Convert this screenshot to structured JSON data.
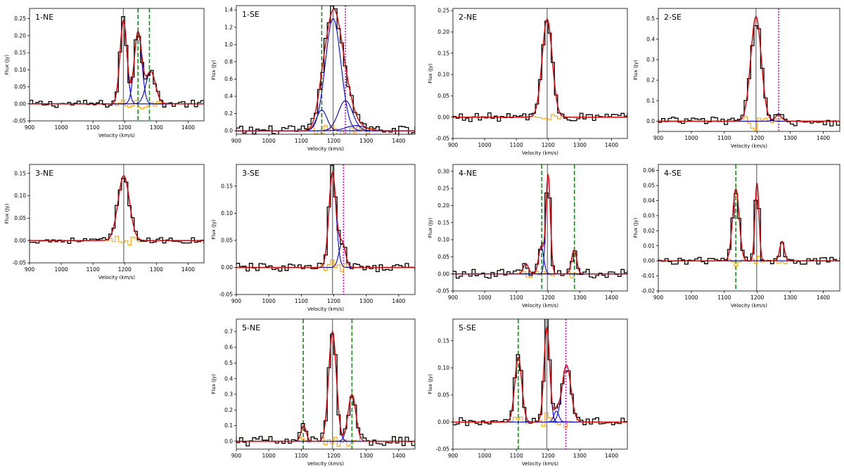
{
  "chart_data": [
    {
      "type": "line",
      "title": "1-NE",
      "xlabel": "Velocity (km/s)",
      "ylabel": "Flux (Jy)",
      "xlim": [
        900,
        1450
      ],
      "ylim": [
        -0.05,
        0.28
      ],
      "xticks": [
        900,
        1000,
        1100,
        1200,
        1300,
        1400
      ],
      "yticks": [
        -0.05,
        0.0,
        0.05,
        0.1,
        0.15,
        0.2,
        0.25
      ],
      "grid": false,
      "components": [
        {
          "name": "",
          "center": 1196,
          "amp": 0.245,
          "sigma": 11
        },
        {
          "name": "",
          "center": 1242,
          "amp": 0.21,
          "sigma": 12
        },
        {
          "name": "",
          "center": 1282,
          "amp": 0.095,
          "sigma": 15
        }
      ],
      "reference_lines": [
        {
          "kind": "systemic",
          "color": "#808080",
          "style": "solid",
          "x": 1196
        },
        {
          "kind": "green",
          "color": "#1a8a1a",
          "style": "dashed",
          "x": 1242
        },
        {
          "kind": "green",
          "color": "#1a8a1a",
          "style": "dashed",
          "x": 1278
        }
      ]
    },
    {
      "type": "line",
      "title": "1-SE",
      "xlabel": "Velocity (km/s)",
      "ylabel": "Flux (Jy)",
      "xlim": [
        900,
        1450
      ],
      "ylim": [
        -0.04,
        1.45
      ],
      "xticks": [
        900,
        1000,
        1100,
        1200,
        1300,
        1400
      ],
      "yticks": [
        0.0,
        0.2,
        0.4,
        0.6,
        0.8,
        1.0,
        1.2,
        1.4
      ],
      "grid": false,
      "components": [
        {
          "name": "",
          "center": 1163,
          "amp": 0.24,
          "sigma": 16
        },
        {
          "name": "",
          "center": 1198,
          "amp": 1.3,
          "sigma": 24
        },
        {
          "name": "",
          "center": 1236,
          "amp": 0.35,
          "sigma": 22
        },
        {
          "name": "",
          "center": 1268,
          "amp": 0.06,
          "sigma": 30
        }
      ],
      "reference_lines": [
        {
          "kind": "green",
          "color": "#1a8a1a",
          "style": "dashed",
          "x": 1163
        },
        {
          "kind": "systemic",
          "color": "#808080",
          "style": "solid",
          "x": 1198
        },
        {
          "kind": "magenta",
          "color": "#e000e0",
          "style": "dotted",
          "x": 1236
        }
      ]
    },
    {
      "type": "line",
      "title": "2-NE",
      "xlabel": "Velocity (km/s)",
      "ylabel": "Flux (Jy)",
      "xlim": [
        900,
        1450
      ],
      "ylim": [
        -0.05,
        0.255
      ],
      "xticks": [
        900,
        1000,
        1100,
        1200,
        1300,
        1400
      ],
      "yticks": [
        -0.05,
        0.0,
        0.05,
        0.1,
        0.15,
        0.2,
        0.25
      ],
      "grid": false,
      "components": [
        {
          "name": "",
          "center": 1197,
          "amp": 0.23,
          "sigma": 16
        }
      ],
      "reference_lines": [
        {
          "kind": "systemic",
          "color": "#808080",
          "style": "solid",
          "x": 1197
        }
      ]
    },
    {
      "type": "line",
      "title": "2-SE",
      "xlabel": "Velocity (km/s)",
      "ylabel": "Flux (Jy)",
      "xlim": [
        900,
        1450
      ],
      "ylim": [
        -0.05,
        0.55
      ],
      "xticks": [
        900,
        1000,
        1100,
        1200,
        1300,
        1400
      ],
      "yticks": [
        0.0,
        0.1,
        0.2,
        0.3,
        0.4,
        0.5
      ],
      "grid": false,
      "components": [
        {
          "name": "",
          "center": 1196,
          "amp": 0.51,
          "sigma": 16
        },
        {
          "name": "",
          "center": 1264,
          "amp": 0.03,
          "sigma": 10
        }
      ],
      "reference_lines": [
        {
          "kind": "systemic",
          "color": "#808080",
          "style": "solid",
          "x": 1196
        },
        {
          "kind": "magenta",
          "color": "#e000e0",
          "style": "dotted",
          "x": 1265
        }
      ]
    },
    {
      "type": "line",
      "title": "3-NE",
      "xlabel": "Velocity (km/s)",
      "ylabel": "Flux (Jy)",
      "xlim": [
        900,
        1450
      ],
      "ylim": [
        -0.05,
        0.17
      ],
      "xticks": [
        900,
        1000,
        1100,
        1200,
        1300,
        1400
      ],
      "yticks": [
        -0.05,
        0.0,
        0.05,
        0.1,
        0.15
      ],
      "grid": false,
      "components": [
        {
          "name": "",
          "center": 1197,
          "amp": 0.145,
          "sigma": 18
        }
      ],
      "reference_lines": [
        {
          "kind": "systemic",
          "color": "#808080",
          "style": "solid",
          "x": 1197
        }
      ]
    },
    {
      "type": "line",
      "title": "3-SE",
      "xlabel": "Velocity (km/s)",
      "ylabel": "Flux (Jy)",
      "xlim": [
        900,
        1450
      ],
      "ylim": [
        -0.05,
        0.19
      ],
      "xticks": [
        900,
        1000,
        1100,
        1200,
        1300,
        1400
      ],
      "yticks": [
        -0.05,
        0.0,
        0.05,
        0.1,
        0.15
      ],
      "grid": false,
      "components": [
        {
          "name": "",
          "center": 1196,
          "amp": 0.175,
          "sigma": 11
        },
        {
          "name": "",
          "center": 1226,
          "amp": 0.045,
          "sigma": 10
        }
      ],
      "reference_lines": [
        {
          "kind": "systemic",
          "color": "#808080",
          "style": "solid",
          "x": 1196
        },
        {
          "kind": "magenta",
          "color": "#e000e0",
          "style": "dotted",
          "x": 1230
        }
      ]
    },
    {
      "type": "line",
      "title": "4-NE",
      "xlabel": "Velocity (km/s)",
      "ylabel": "Flux (Jy)",
      "xlim": [
        900,
        1450
      ],
      "ylim": [
        -0.05,
        0.32
      ],
      "xticks": [
        900,
        1000,
        1100,
        1200,
        1300,
        1400
      ],
      "yticks": [
        -0.05,
        0.0,
        0.05,
        0.1,
        0.15,
        0.2,
        0.25,
        0.3
      ],
      "grid": false,
      "components": [
        {
          "name": "",
          "center": 1130,
          "amp": 0.03,
          "sigma": 8
        },
        {
          "name": "",
          "center": 1178,
          "amp": 0.08,
          "sigma": 8
        },
        {
          "name": "",
          "center": 1200,
          "amp": 0.29,
          "sigma": 7
        },
        {
          "name": "",
          "center": 1282,
          "amp": 0.07,
          "sigma": 8
        }
      ],
      "reference_lines": [
        {
          "kind": "green",
          "color": "#1a8a1a",
          "style": "dashed",
          "x": 1180
        },
        {
          "kind": "systemic",
          "color": "#808080",
          "style": "solid",
          "x": 1198
        },
        {
          "kind": "green",
          "color": "#1a8a1a",
          "style": "dashed",
          "x": 1283
        }
      ]
    },
    {
      "type": "line",
      "title": "4-SE",
      "xlabel": "Velocity (km/s)",
      "ylabel": "Flux (Jy)",
      "xlim": [
        900,
        1450
      ],
      "ylim": [
        -0.02,
        0.064
      ],
      "xticks": [
        900,
        1000,
        1100,
        1200,
        1300,
        1400
      ],
      "yticks": [
        -0.02,
        -0.01,
        0.0,
        0.01,
        0.02,
        0.03,
        0.04,
        0.05,
        0.06
      ],
      "grid": false,
      "components": [
        {
          "name": "",
          "center": 1135,
          "amp": 0.048,
          "sigma": 10
        },
        {
          "name": "",
          "center": 1199,
          "amp": 0.052,
          "sigma": 6
        },
        {
          "name": "",
          "center": 1275,
          "amp": 0.013,
          "sigma": 7
        }
      ],
      "reference_lines": [
        {
          "kind": "green",
          "color": "#1a8a1a",
          "style": "dashed",
          "x": 1135
        },
        {
          "kind": "systemic",
          "color": "#808080",
          "style": "solid",
          "x": 1198
        }
      ]
    },
    {
      "type": "line",
      "title": "5-NE",
      "xlabel": "Velocity (km/s)",
      "ylabel": "Flux (Jy)",
      "xlim": [
        900,
        1450
      ],
      "ylim": [
        -0.05,
        0.78
      ],
      "xticks": [
        900,
        1000,
        1100,
        1200,
        1300,
        1400
      ],
      "yticks": [
        0.0,
        0.1,
        0.2,
        0.3,
        0.4,
        0.5,
        0.6,
        0.7
      ],
      "grid": false,
      "components": [
        {
          "name": "",
          "center": 1107,
          "amp": 0.1,
          "sigma": 8
        },
        {
          "name": "",
          "center": 1196,
          "amp": 0.7,
          "sigma": 12
        },
        {
          "name": "",
          "center": 1256,
          "amp": 0.3,
          "sigma": 12
        }
      ],
      "reference_lines": [
        {
          "kind": "green",
          "color": "#1a8a1a",
          "style": "dashed",
          "x": 1106
        },
        {
          "kind": "systemic",
          "color": "#808080",
          "style": "solid",
          "x": 1196
        },
        {
          "kind": "green",
          "color": "#1a8a1a",
          "style": "dashed",
          "x": 1256
        }
      ]
    },
    {
      "type": "line",
      "title": "5-SE",
      "xlabel": "Velocity (km/s)",
      "ylabel": "Flux (Jy)",
      "xlim": [
        900,
        1450
      ],
      "ylim": [
        -0.05,
        0.19
      ],
      "xticks": [
        900,
        1000,
        1100,
        1200,
        1300,
        1400
      ],
      "yticks": [
        -0.05,
        0.0,
        0.05,
        0.1,
        0.15
      ],
      "grid": false,
      "components": [
        {
          "name": "",
          "center": 1106,
          "amp": 0.12,
          "sigma": 11
        },
        {
          "name": "",
          "center": 1196,
          "amp": 0.175,
          "sigma": 9
        },
        {
          "name": "",
          "center": 1226,
          "amp": 0.02,
          "sigma": 8
        },
        {
          "name": "",
          "center": 1258,
          "amp": 0.105,
          "sigma": 14
        }
      ],
      "reference_lines": [
        {
          "kind": "green",
          "color": "#1a8a1a",
          "style": "dashed",
          "x": 1106
        },
        {
          "kind": "systemic",
          "color": "#808080",
          "style": "solid",
          "x": 1196
        },
        {
          "kind": "magenta",
          "color": "#e000e0",
          "style": "dotted",
          "x": 1256
        }
      ]
    }
  ],
  "style": {
    "data_color": "#000000",
    "fit_color": "#e00000",
    "component_color": "#0000dd",
    "residual_color": "#ffa500"
  }
}
